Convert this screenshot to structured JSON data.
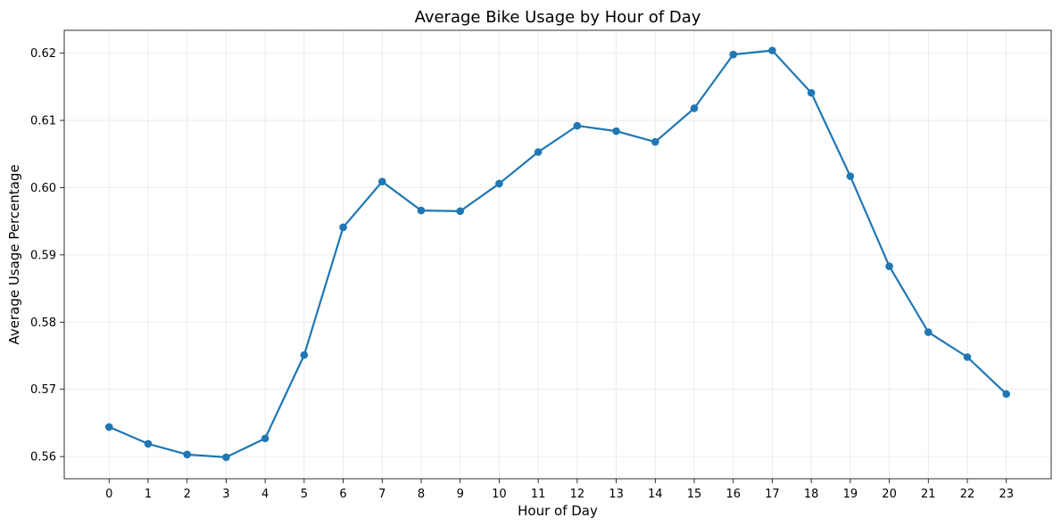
{
  "chart_data": {
    "type": "line",
    "title": "Average Bike Usage by Hour of Day",
    "xlabel": "Hour of Day",
    "ylabel": "Average Usage Percentage",
    "x": [
      0,
      1,
      2,
      3,
      4,
      5,
      6,
      7,
      8,
      9,
      10,
      11,
      12,
      13,
      14,
      15,
      16,
      17,
      18,
      19,
      20,
      21,
      22,
      23
    ],
    "x_tick_labels": [
      "0",
      "1",
      "2",
      "3",
      "4",
      "5",
      "6",
      "7",
      "8",
      "9",
      "10",
      "11",
      "12",
      "13",
      "14",
      "15",
      "16",
      "17",
      "18",
      "19",
      "20",
      "21",
      "22",
      "23"
    ],
    "y_tick_values": [
      0.56,
      0.57,
      0.58,
      0.59,
      0.6,
      0.61,
      0.62
    ],
    "y_tick_labels": [
      "0.56",
      "0.57",
      "0.58",
      "0.59",
      "0.60",
      "0.61",
      "0.62"
    ],
    "xlim": [
      -1.15,
      24.15
    ],
    "ylim": [
      0.5567,
      0.6234
    ],
    "grid": true,
    "series": [
      {
        "color": "#1f77b4",
        "marker": "circle",
        "values": [
          0.5644,
          0.5619,
          0.5603,
          0.5599,
          0.5627,
          0.5751,
          0.5941,
          0.6009,
          0.5966,
          0.5965,
          0.6006,
          0.6053,
          0.6092,
          0.6084,
          0.6068,
          0.6118,
          0.6198,
          0.6204,
          0.6141,
          0.6017,
          0.5883,
          0.5785,
          0.5748,
          0.5693
        ]
      }
    ]
  }
}
